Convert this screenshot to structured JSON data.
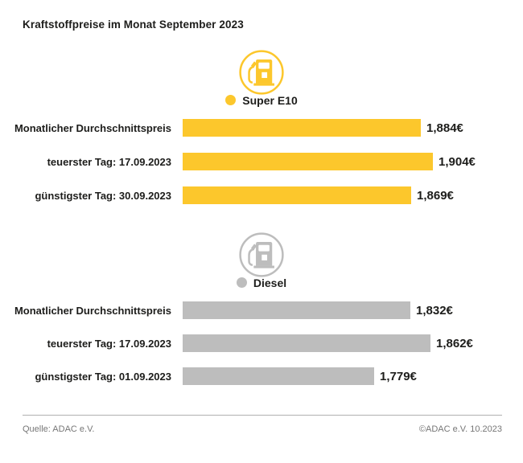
{
  "title": "Kraftstoffpreise im Monat September 2023",
  "footer": {
    "source": "Quelle: ADAC e.V.",
    "copyright": "©ADAC e.V. 10.2023"
  },
  "colors": {
    "super_e10": "#FCC72C",
    "diesel": "#BDBDBD",
    "text": "#1d1d1b",
    "footer_text": "#767676"
  },
  "chart_data": [
    {
      "type": "bar",
      "orientation": "horizontal",
      "title": "Super E10",
      "icon": "fuel-pump-icon",
      "color": "#FCC72C",
      "categories": [
        "Monatlicher Durchschnittspreis",
        "teuerster Tag: 17.09.2023",
        "günstigster Tag: 30.09.2023"
      ],
      "values": [
        1.884,
        1.904,
        1.869
      ],
      "value_labels": [
        "1,884€",
        "1,904€",
        "1,869€"
      ],
      "unit": "€",
      "legend_position": "top",
      "grid": false,
      "value_axis_hidden": true
    },
    {
      "type": "bar",
      "orientation": "horizontal",
      "title": "Diesel",
      "icon": "fuel-pump-icon",
      "color": "#BDBDBD",
      "categories": [
        "Monatlicher Durchschnittspreis",
        "teuerster Tag: 17.09.2023",
        "günstigster Tag: 01.09.2023"
      ],
      "values": [
        1.832,
        1.862,
        1.779
      ],
      "value_labels": [
        "1,832€",
        "1,862€",
        "1,779€"
      ],
      "unit": "€",
      "legend_position": "top",
      "grid": false,
      "value_axis_hidden": true
    }
  ]
}
